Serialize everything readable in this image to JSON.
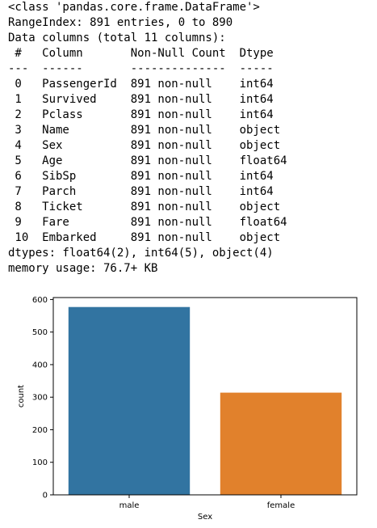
{
  "info": {
    "lines": [
      "<class 'pandas.core.frame.DataFrame'>",
      "RangeIndex: 891 entries, 0 to 890",
      "Data columns (total 11 columns):",
      " #   Column       Non-Null Count  Dtype  ",
      "---  ------       --------------  -----  ",
      " 0   PassengerId  891 non-null    int64  ",
      " 1   Survived     891 non-null    int64  ",
      " 2   Pclass       891 non-null    int64  ",
      " 3   Name         891 non-null    object ",
      " 4   Sex          891 non-null    object ",
      " 5   Age          891 non-null    float64",
      " 6   SibSp        891 non-null    int64  ",
      " 7   Parch        891 non-null    int64  ",
      " 8   Ticket       891 non-null    object ",
      " 9   Fare         891 non-null    float64",
      " 10  Embarked     891 non-null    object ",
      "dtypes: float64(2), int64(5), object(4)",
      "memory usage: 76.7+ KB"
    ]
  },
  "chart_data": {
    "type": "bar",
    "categories": [
      "male",
      "female"
    ],
    "values": [
      577,
      314
    ],
    "xlabel": "Sex",
    "ylabel": "count",
    "ylim": [
      0,
      606
    ],
    "yticks": [
      0,
      100,
      200,
      300,
      400,
      500,
      600
    ],
    "colors": [
      "#3274a1",
      "#e1812c"
    ],
    "grid": false
  }
}
